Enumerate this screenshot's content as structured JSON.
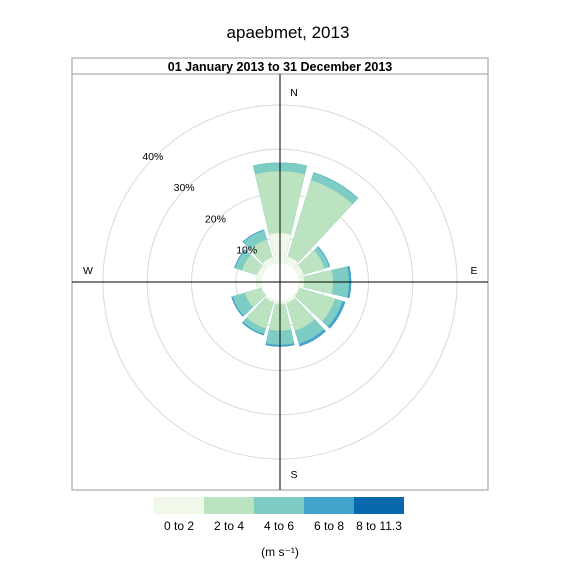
{
  "chart_data": {
    "type": "windrose",
    "title": "apaebmet, 2013",
    "subtitle": "01 January 2013 to 31 December 2013",
    "directions": [
      {
        "label": "N",
        "angle": 0
      },
      {
        "label": "E",
        "angle": 90
      },
      {
        "label": "S",
        "angle": 180
      },
      {
        "label": "W",
        "angle": 270
      }
    ],
    "rings": [
      {
        "label": "10%",
        "value": 10
      },
      {
        "label": "20%",
        "value": 20
      },
      {
        "label": "30%",
        "value": 30
      },
      {
        "label": "40%",
        "value": 40
      }
    ],
    "rmax": 47,
    "bins": [
      {
        "label": "0 to 2",
        "color": "#F0F8EA"
      },
      {
        "label": "2 to 4",
        "color": "#BBE3BF"
      },
      {
        "label": "4 to 6",
        "color": "#7ECDC4"
      },
      {
        "label": "6 to 8",
        "color": "#42A4CC"
      },
      {
        "label": "8 to 11.3",
        "color": "#0868AC"
      }
    ],
    "units": "(m s⁻¹)",
    "sectors": [
      {
        "angle": 0,
        "cum": [
          11.0,
          25.0,
          27.0,
          27.0,
          27.0
        ]
      },
      {
        "angle": 30,
        "cum": [
          6.0,
          24.0,
          25.8,
          25.9,
          25.9
        ]
      },
      {
        "angle": 60,
        "cum": [
          5.6,
          10.5,
          11.6,
          11.8,
          11.8
        ]
      },
      {
        "angle": 90,
        "cum": [
          5.4,
          12.0,
          15.6,
          16.1,
          16.1
        ]
      },
      {
        "angle": 120,
        "cum": [
          4.6,
          13.0,
          14.8,
          15.4,
          15.4
        ]
      },
      {
        "angle": 150,
        "cum": [
          5.0,
          11.5,
          14.6,
          15.2,
          15.2
        ]
      },
      {
        "angle": 180,
        "cum": [
          5.0,
          11.0,
          14.2,
          14.6,
          14.6
        ]
      },
      {
        "angle": 210,
        "cum": [
          4.8,
          11.0,
          12.3,
          12.6,
          12.6
        ]
      },
      {
        "angle": 240,
        "cum": [
          4.4,
          8.3,
          11.2,
          11.5,
          11.5
        ]
      },
      {
        "angle": 270,
        "cum": [
          5.4,
          5.4,
          5.4,
          5.4,
          5.4
        ]
      },
      {
        "angle": 300,
        "cum": [
          5.4,
          9.0,
          10.6,
          10.8,
          10.8
        ]
      },
      {
        "angle": 330,
        "cum": [
          5.8,
          10.0,
          12.2,
          12.4,
          12.4
        ]
      }
    ]
  }
}
